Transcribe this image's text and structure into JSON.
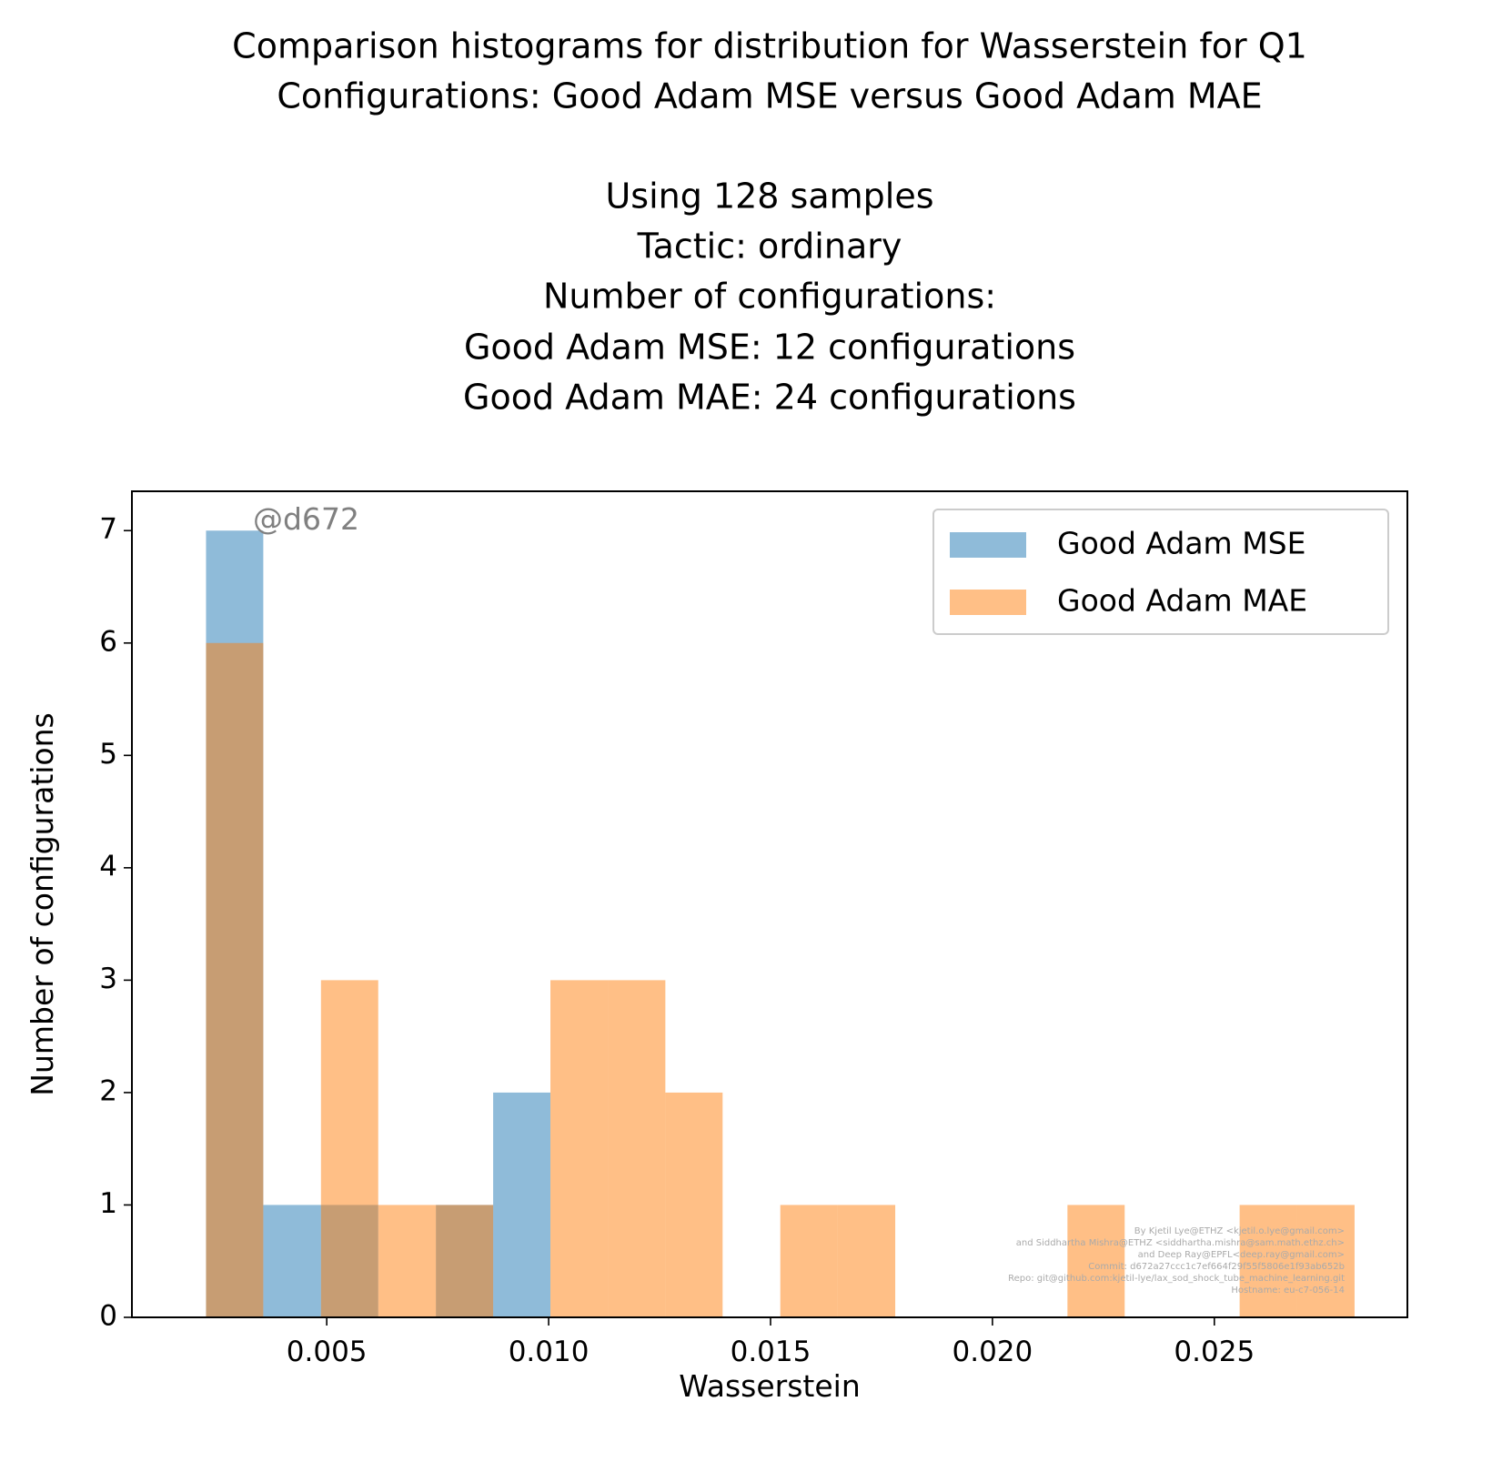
{
  "chart_data": {
    "type": "bar",
    "title_lines": [
      "Comparison histograms for distribution for Wasserstein for Q1",
      "Configurations: Good Adam MSE versus Good Adam MAE",
      "",
      "Using 128 samples",
      "Tactic: ordinary",
      "Number of configurations:",
      "Good Adam MSE: 12 configurations",
      "Good Adam MAE: 24 configurations"
    ],
    "xlabel": "Wasserstein",
    "ylabel": "Number of configurations",
    "xlim": [
      0.00061,
      0.02935
    ],
    "ylim": [
      0,
      7.35
    ],
    "xticks": [
      0.005,
      0.01,
      0.015,
      0.02,
      0.025
    ],
    "xtick_labels": [
      "0.005",
      "0.010",
      "0.015",
      "0.020",
      "0.025"
    ],
    "yticks": [
      0,
      1,
      2,
      3,
      4,
      5,
      6,
      7
    ],
    "ytick_labels": [
      "0",
      "1",
      "2",
      "3",
      "4",
      "5",
      "6",
      "7"
    ],
    "bin_edges": [
      0.00228,
      0.00357,
      0.00487,
      0.00616,
      0.00746,
      0.00875,
      0.01004,
      0.01134,
      0.01263,
      0.01392,
      0.01522,
      0.01651,
      0.01781,
      0.0191,
      0.02039,
      0.02169,
      0.02298,
      0.02427,
      0.02557,
      0.02686,
      0.02816
    ],
    "series": [
      {
        "name": "Good Adam MSE",
        "color": "#1f77b4",
        "alpha": 0.5,
        "counts": [
          7,
          1,
          1,
          0,
          1,
          2,
          0,
          0,
          0,
          0,
          0,
          0,
          0,
          0,
          0,
          0,
          0,
          0,
          0,
          0
        ]
      },
      {
        "name": "Good Adam MAE",
        "color": "#ff7f0e",
        "alpha": 0.5,
        "counts": [
          6,
          0,
          3,
          1,
          1,
          0,
          3,
          3,
          2,
          0,
          1,
          1,
          0,
          0,
          0,
          1,
          0,
          0,
          1,
          1
        ]
      }
    ],
    "legend_position": "upper right",
    "grid": false,
    "annotation": "@d672",
    "credits": [
      "By Kjetil Lye@ETHZ <kjetil.o.lye@gmail.com>",
      "and Siddhartha Mishra@ETHZ <siddhartha.mishra@sam.math.ethz.ch>",
      "and Deep Ray@EPFL<deep.ray@gmail.com>",
      "Commit: d672a27ccc1c7ef664f29f55f5806e1f93ab652b",
      "Repo: git@github.com:kjetil-lye/lax_sod_shock_tube_machine_learning.git",
      "Hostname: eu-c7-056-14"
    ]
  }
}
